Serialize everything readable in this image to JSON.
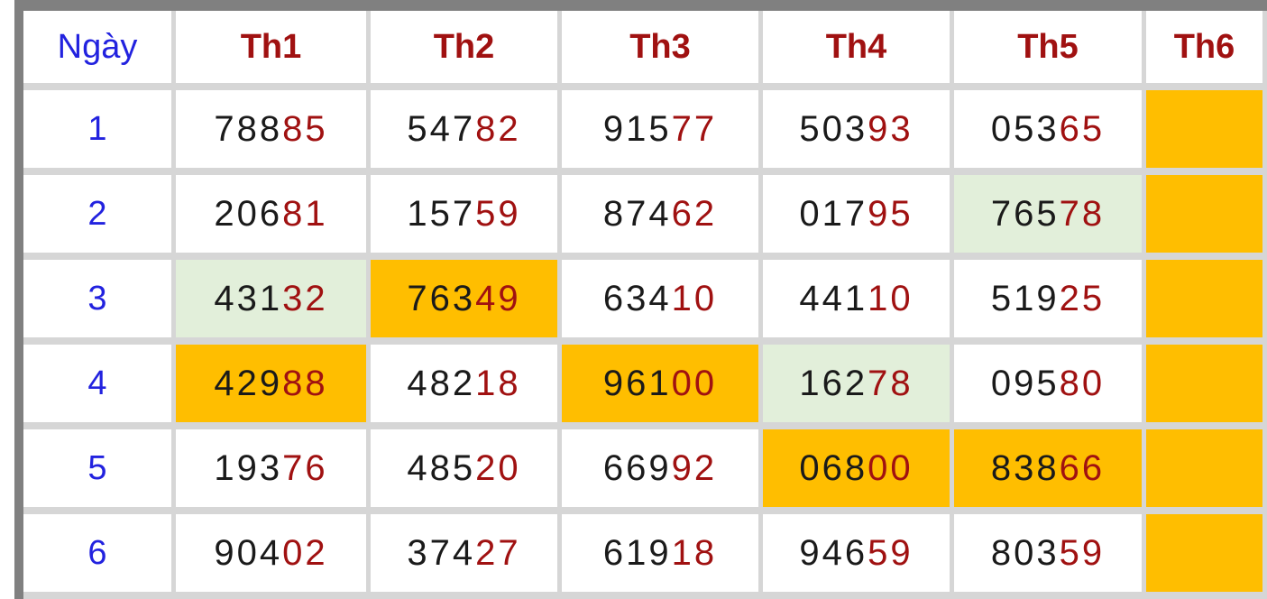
{
  "colors": {
    "orange": "#FFBE00",
    "green": "#E2EFDA",
    "red": "#A01111",
    "blue": "#2222DF",
    "black": "#1A1A1A",
    "grid": "#D6D6D6",
    "frame": "#808080"
  },
  "table": {
    "day_header": "Ngày",
    "columns": [
      "Th1",
      "Th2",
      "Th3",
      "Th4",
      "Th5",
      "Th6"
    ],
    "rows": [
      {
        "day": "1",
        "cells": [
          {
            "black": "788",
            "red": "85",
            "bg": "none"
          },
          {
            "black": "547",
            "red": "82",
            "bg": "none"
          },
          {
            "black": "915",
            "red": "77",
            "bg": "none"
          },
          {
            "black": "503",
            "red": "93",
            "bg": "none"
          },
          {
            "black": "053",
            "red": "65",
            "bg": "none"
          },
          {
            "black": "",
            "red": "",
            "bg": "orange"
          }
        ]
      },
      {
        "day": "2",
        "cells": [
          {
            "black": "206",
            "red": "81",
            "bg": "none"
          },
          {
            "black": "157",
            "red": "59",
            "bg": "none"
          },
          {
            "black": "874",
            "red": "62",
            "bg": "none"
          },
          {
            "black": "017",
            "red": "95",
            "bg": "none"
          },
          {
            "black": "765",
            "red": "78",
            "bg": "green"
          },
          {
            "black": "",
            "red": "",
            "bg": "orange"
          }
        ]
      },
      {
        "day": "3",
        "cells": [
          {
            "black": "431",
            "red": "32",
            "bg": "green"
          },
          {
            "black": "763",
            "red": "49",
            "bg": "orange"
          },
          {
            "black": "634",
            "red": "10",
            "bg": "none"
          },
          {
            "black": "441",
            "red": "10",
            "bg": "none"
          },
          {
            "black": "519",
            "red": "25",
            "bg": "none"
          },
          {
            "black": "",
            "red": "",
            "bg": "orange"
          }
        ]
      },
      {
        "day": "4",
        "cells": [
          {
            "black": "429",
            "red": "88",
            "bg": "orange"
          },
          {
            "black": "482",
            "red": "18",
            "bg": "none"
          },
          {
            "black": "961",
            "red": "00",
            "bg": "orange"
          },
          {
            "black": "162",
            "red": "78",
            "bg": "green"
          },
          {
            "black": "095",
            "red": "80",
            "bg": "none"
          },
          {
            "black": "",
            "red": "",
            "bg": "orange"
          }
        ]
      },
      {
        "day": "5",
        "cells": [
          {
            "black": "193",
            "red": "76",
            "bg": "none"
          },
          {
            "black": "485",
            "red": "20",
            "bg": "none"
          },
          {
            "black": "669",
            "red": "92",
            "bg": "none"
          },
          {
            "black": "068",
            "red": "00",
            "bg": "orange"
          },
          {
            "black": "838",
            "red": "66",
            "bg": "orange"
          },
          {
            "black": "",
            "red": "",
            "bg": "orange"
          }
        ]
      },
      {
        "day": "6",
        "cells": [
          {
            "black": "904",
            "red": "02",
            "bg": "none"
          },
          {
            "black": "374",
            "red": "27",
            "bg": "none"
          },
          {
            "black": "619",
            "red": "18",
            "bg": "none"
          },
          {
            "black": "946",
            "red": "59",
            "bg": "none"
          },
          {
            "black": "803",
            "red": "59",
            "bg": "none"
          },
          {
            "black": "",
            "red": "",
            "bg": "orange"
          }
        ]
      }
    ]
  }
}
